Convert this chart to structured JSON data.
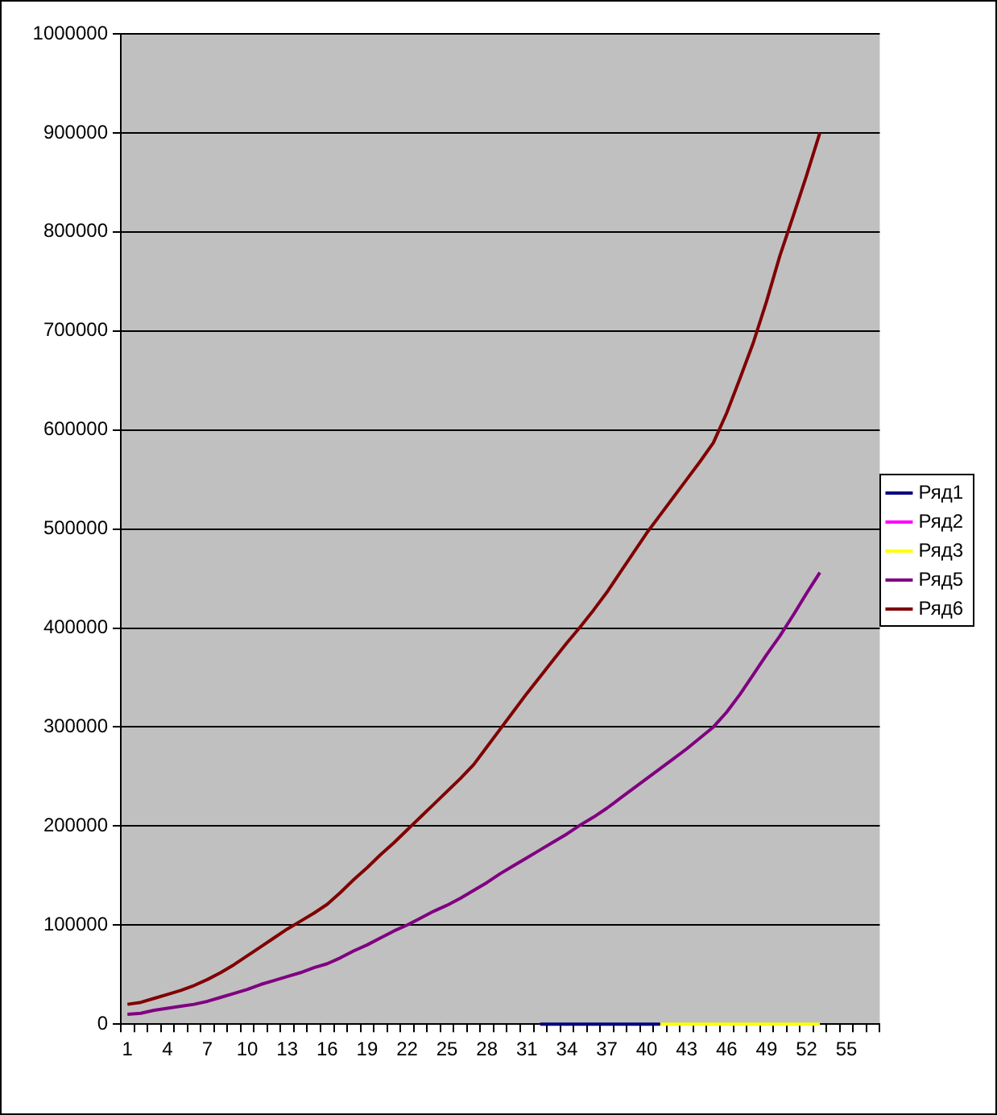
{
  "chart_data": {
    "type": "line",
    "categories": [
      "1",
      null,
      null,
      "4",
      null,
      null,
      "7",
      null,
      null,
      "10",
      null,
      null,
      "13",
      null,
      null,
      "16",
      null,
      null,
      "19",
      null,
      null,
      "22",
      null,
      null,
      "25",
      null,
      null,
      "28",
      null,
      null,
      "31",
      null,
      null,
      "34",
      null,
      null,
      "37",
      null,
      null,
      "40",
      null,
      null,
      "43",
      null,
      null,
      "46",
      null,
      null,
      "49",
      null,
      null,
      "52",
      null,
      null,
      "55",
      null,
      null
    ],
    "series": [
      {
        "name": "Ряд1",
        "color": "#000080",
        "values": [
          null,
          null,
          null,
          null,
          null,
          null,
          null,
          null,
          null,
          null,
          null,
          null,
          null,
          null,
          null,
          null,
          null,
          null,
          null,
          null,
          null,
          null,
          null,
          null,
          null,
          null,
          null,
          null,
          null,
          null,
          null,
          0,
          0,
          0,
          0,
          0,
          0,
          0,
          0,
          0,
          0,
          null,
          null,
          null,
          null,
          null,
          null,
          null,
          null,
          null,
          null,
          null,
          null,
          null,
          null,
          null,
          null
        ]
      },
      {
        "name": "Ряд2",
        "color": "#ff00ff",
        "values": [
          null,
          null,
          null,
          null,
          null,
          null,
          null,
          null,
          null,
          null,
          null,
          null,
          null,
          null,
          null,
          null,
          null,
          null,
          null,
          null,
          null,
          null,
          null,
          null,
          null,
          null,
          null,
          null,
          null,
          null,
          null,
          null,
          null,
          null,
          null,
          null,
          null,
          null,
          null,
          null,
          null,
          null,
          null,
          null,
          null,
          null,
          null,
          null,
          null,
          null,
          null,
          null,
          null,
          null,
          null,
          null,
          null
        ]
      },
      {
        "name": "Ряд3",
        "color": "#ffff00",
        "values": [
          null,
          null,
          null,
          null,
          null,
          null,
          null,
          null,
          null,
          null,
          null,
          null,
          null,
          null,
          null,
          null,
          null,
          null,
          null,
          null,
          null,
          null,
          null,
          null,
          null,
          null,
          null,
          null,
          null,
          null,
          null,
          null,
          null,
          null,
          null,
          null,
          null,
          null,
          null,
          null,
          0,
          0,
          0,
          0,
          0,
          0,
          0,
          0,
          0,
          0,
          0,
          0,
          0,
          null,
          null,
          null,
          null
        ]
      },
      {
        "name": "Ряд5",
        "color": "#800080",
        "values": [
          10000,
          11000,
          14000,
          16000,
          18000,
          20000,
          23000,
          27000,
          31000,
          35000,
          40000,
          44000,
          48000,
          52000,
          57000,
          61000,
          67000,
          74000,
          80000,
          87000,
          94000,
          100000,
          107000,
          114000,
          120000,
          127000,
          135000,
          143000,
          152000,
          160000,
          168000,
          176000,
          184000,
          192000,
          201000,
          209000,
          218000,
          228000,
          238000,
          248000,
          258000,
          268000,
          278000,
          289000,
          300000,
          315000,
          333000,
          353000,
          373000,
          392000,
          413000,
          435000,
          456000,
          null,
          null,
          null,
          null
        ]
      },
      {
        "name": "Ряд6",
        "color": "#800000",
        "values": [
          20000,
          22000,
          26000,
          30000,
          34000,
          39000,
          45000,
          52000,
          60000,
          69000,
          78000,
          87000,
          96000,
          104000,
          112000,
          121000,
          133000,
          146000,
          158000,
          171000,
          183000,
          196000,
          209000,
          222000,
          235000,
          248000,
          262000,
          280000,
          298000,
          316000,
          334000,
          351000,
          368000,
          385000,
          401000,
          418000,
          436000,
          456000,
          476000,
          496000,
          514000,
          532000,
          550000,
          568000,
          587000,
          617000,
          652000,
          688000,
          730000,
          776000,
          816000,
          857000,
          900000,
          null,
          null,
          null,
          null
        ]
      }
    ],
    "ylim": [
      0,
      1000000
    ],
    "yticks": [
      0,
      100000,
      200000,
      300000,
      400000,
      500000,
      600000,
      700000,
      800000,
      900000,
      1000000
    ],
    "grid": "y",
    "legend": "right",
    "marker": "none",
    "line_style": "solid"
  }
}
